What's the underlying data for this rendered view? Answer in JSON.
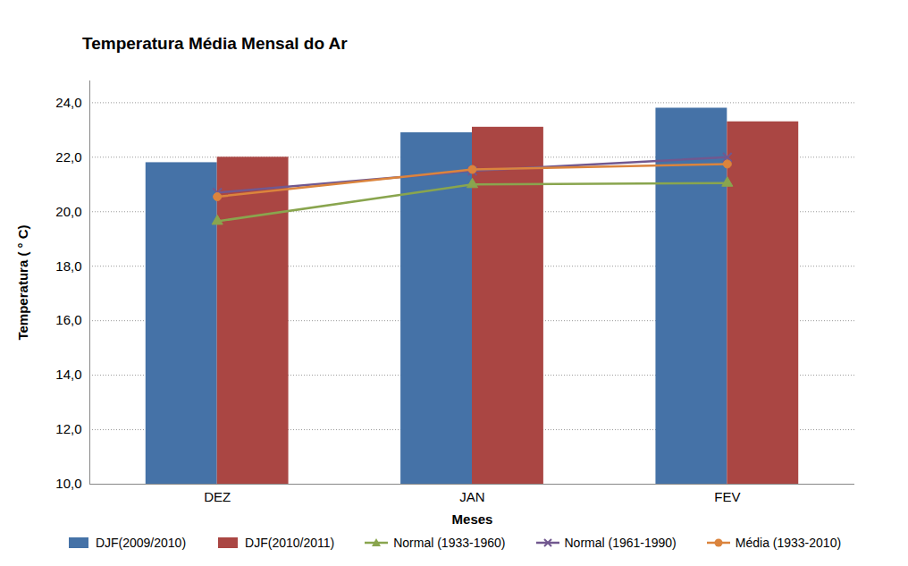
{
  "chart_data": {
    "type": "bar",
    "title": "Temperatura Média Mensal do Ar",
    "x_label": "Meses",
    "y_label": "Temperatura ( ° C)",
    "categories": [
      "DEZ",
      "JAN",
      "FEV"
    ],
    "series": [
      {
        "name": "DJF(2009/2010)",
        "type": "bar",
        "color": "#4572a7",
        "values": [
          21.8,
          22.9,
          23.8
        ]
      },
      {
        "name": "DJF(2010/2011)",
        "type": "bar",
        "color": "#aa4643",
        "values": [
          22.0,
          23.1,
          23.3
        ]
      },
      {
        "name": "Normal (1933-1960)",
        "type": "line",
        "color": "#89a54e",
        "marker": "triangle",
        "values": [
          19.65,
          21.0,
          21.05
        ]
      },
      {
        "name": "Normal (1961-1990)",
        "type": "line",
        "color": "#71588f",
        "marker": "x",
        "values": [
          20.7,
          21.5,
          22.0
        ]
      },
      {
        "name": "Média (1933-2010)",
        "type": "line",
        "color": "#db843d",
        "marker": "circle",
        "values": [
          20.55,
          21.55,
          21.75
        ]
      }
    ],
    "ylim": [
      10,
      24.8
    ],
    "yticks": [
      {
        "value": 10,
        "label": "10,0"
      },
      {
        "value": 12,
        "label": "12,0"
      },
      {
        "value": 14,
        "label": "14,0"
      },
      {
        "value": 16,
        "label": "16,0"
      },
      {
        "value": 18,
        "label": "18,0"
      },
      {
        "value": 20,
        "label": "20,0"
      },
      {
        "value": 22,
        "label": "22,0"
      },
      {
        "value": 24,
        "label": "24,0"
      }
    ],
    "grid": true,
    "legend": "bottom"
  }
}
